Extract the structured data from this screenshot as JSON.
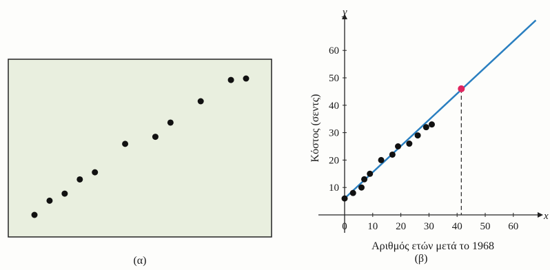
{
  "chart_data": [
    {
      "type": "scatter",
      "panel_label": "(α)",
      "x": [
        1,
        2,
        3,
        4,
        5,
        7,
        9,
        10,
        12,
        14,
        15
      ],
      "y": [
        5,
        7,
        8,
        10,
        11,
        15,
        16,
        18,
        21,
        24,
        24.2
      ],
      "axes_visible": false,
      "background": "#e9efdf",
      "point_color": "#111111"
    },
    {
      "type": "scatter",
      "panel_label": "(β)",
      "xlabel": "Αριθμός ετών μετά το 1968",
      "ylabel": "Κόστος (σεντς)",
      "x_axis_letter": "x",
      "y_axis_letter": "y",
      "xlim": [
        0,
        68
      ],
      "ylim": [
        0,
        70
      ],
      "xticks": [
        "0",
        "10",
        "20",
        "30",
        "40",
        "50",
        "60"
      ],
      "yticks": [
        "10",
        "20",
        "30",
        "40",
        "50",
        "60"
      ],
      "x": [
        0,
        3,
        6,
        7,
        9,
        13,
        17,
        19,
        23,
        26,
        29,
        31
      ],
      "y": [
        6,
        8,
        10,
        13,
        15,
        20,
        22,
        25,
        26,
        29,
        32,
        33
      ],
      "trend_line": {
        "x": [
          0,
          68
        ],
        "y": [
          6,
          71
        ]
      },
      "highlight_point": {
        "x": 41.5,
        "y": 46
      },
      "point_color": "#111111",
      "line_color": "#2a7fc0",
      "highlight_color": "#e0245e"
    }
  ]
}
